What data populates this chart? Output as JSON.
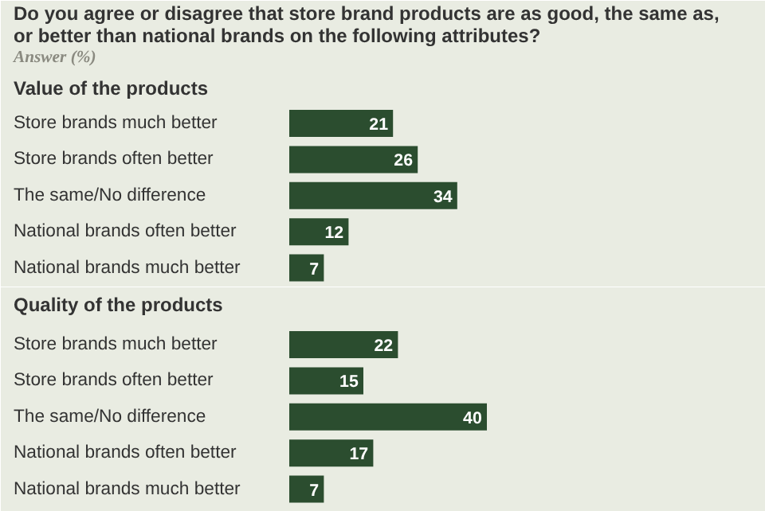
{
  "chart_data": [
    {
      "type": "bar",
      "orientation": "horizontal",
      "title": "Do you agree or disagree that store brand products are as good, the same as,\nor better than national brands on the following attributes?",
      "subtitle": "Answer (%)",
      "annotations": [
        "Value of the products"
      ],
      "categories": [
        "Store brands much better",
        "Store brands often better",
        "The same/No difference",
        "National brands often better",
        "National brands much better"
      ],
      "values": [
        21,
        26,
        34,
        12,
        7
      ],
      "color": "#2b4d2f",
      "data_labels": true
    },
    {
      "type": "bar",
      "orientation": "horizontal",
      "title": "Quality of the products",
      "categories": [
        "Store brands much better",
        "Store brands often better",
        "The same/No difference",
        "National brands often better",
        "National brands much better"
      ],
      "values": [
        22,
        15,
        40,
        17,
        7
      ],
      "color": "#2b4d2f",
      "data_labels": true
    }
  ]
}
